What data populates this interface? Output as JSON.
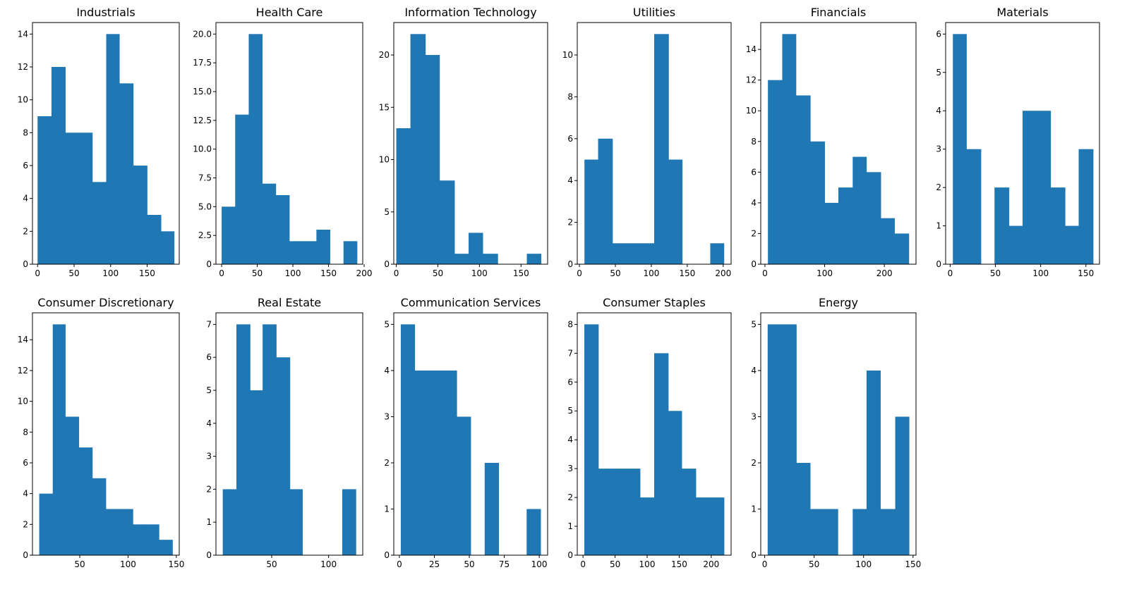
{
  "figure": {
    "bar_color": "#1f77b4",
    "background": "#ffffff"
  },
  "chart_data": [
    {
      "type": "bar",
      "title": "Industrials",
      "bins": [
        [
          0,
          19
        ],
        [
          19,
          38
        ],
        [
          38,
          56
        ],
        [
          56,
          75
        ],
        [
          75,
          94
        ],
        [
          94,
          112
        ],
        [
          112,
          131
        ],
        [
          131,
          150
        ],
        [
          150,
          169
        ],
        [
          169,
          187
        ]
      ],
      "values": [
        9,
        12,
        8,
        8,
        5,
        14,
        11,
        6,
        3,
        2
      ],
      "xlim": [
        -7,
        194
      ],
      "ylim": [
        0,
        14.7
      ],
      "xticks": [
        0,
        50,
        100,
        150
      ],
      "yticks": [
        0,
        2,
        4,
        6,
        8,
        10,
        12,
        14
      ]
    },
    {
      "type": "bar",
      "title": "Health Care",
      "bins": [
        [
          0,
          19
        ],
        [
          19,
          38
        ],
        [
          38,
          57
        ],
        [
          57,
          76
        ],
        [
          76,
          95
        ],
        [
          95,
          114
        ],
        [
          114,
          133
        ],
        [
          133,
          152
        ],
        [
          152,
          171
        ],
        [
          171,
          190
        ]
      ],
      "values": [
        5,
        13,
        20,
        7,
        6,
        2,
        2,
        3,
        0,
        2
      ],
      "xlim": [
        -8,
        198
      ],
      "ylim": [
        0,
        21
      ],
      "xticks": [
        0,
        50,
        100,
        150,
        200
      ],
      "yticks": [
        0,
        2.5,
        5.0,
        7.5,
        10.0,
        12.5,
        15.0,
        17.5,
        20.0
      ]
    },
    {
      "type": "bar",
      "title": "Information Technology",
      "bins": [
        [
          0,
          17
        ],
        [
          17,
          35
        ],
        [
          35,
          52
        ],
        [
          52,
          70
        ],
        [
          70,
          87
        ],
        [
          87,
          104
        ],
        [
          104,
          122
        ],
        [
          122,
          139
        ],
        [
          139,
          157
        ],
        [
          157,
          174
        ]
      ],
      "values": [
        13,
        22,
        20,
        8,
        1,
        3,
        1,
        0,
        0,
        1
      ],
      "xlim": [
        -3,
        182
      ],
      "ylim": [
        0,
        23.1
      ],
      "xticks": [
        0,
        50,
        100,
        150
      ],
      "yticks": [
        0,
        5,
        10,
        15,
        20
      ]
    },
    {
      "type": "bar",
      "title": "Utilities",
      "bins": [
        [
          7,
          26
        ],
        [
          26,
          46
        ],
        [
          46,
          65
        ],
        [
          65,
          85
        ],
        [
          85,
          104
        ],
        [
          104,
          124
        ],
        [
          124,
          143
        ],
        [
          143,
          163
        ],
        [
          163,
          182
        ],
        [
          182,
          201
        ]
      ],
      "values": [
        5,
        6,
        1,
        1,
        1,
        11,
        5,
        0,
        0,
        1
      ],
      "xlim": [
        -3,
        211
      ],
      "ylim": [
        0,
        11.55
      ],
      "xticks": [
        0,
        50,
        100,
        150,
        200
      ],
      "yticks": [
        0,
        2,
        4,
        6,
        8,
        10
      ]
    },
    {
      "type": "bar",
      "title": "Financials",
      "bins": [
        [
          5,
          29
        ],
        [
          29,
          52
        ],
        [
          52,
          76
        ],
        [
          76,
          100
        ],
        [
          100,
          123
        ],
        [
          123,
          147
        ],
        [
          147,
          170
        ],
        [
          170,
          194
        ],
        [
          194,
          217
        ],
        [
          217,
          241
        ]
      ],
      "values": [
        12,
        15,
        11,
        8,
        4,
        5,
        7,
        6,
        3,
        2
      ],
      "xlim": [
        -7,
        253
      ],
      "ylim": [
        0,
        15.75
      ],
      "xticks": [
        0,
        100,
        200
      ],
      "yticks": [
        0,
        2,
        4,
        6,
        8,
        10,
        12,
        14
      ]
    },
    {
      "type": "bar",
      "title": "Materials",
      "bins": [
        [
          3,
          18
        ],
        [
          18,
          34
        ],
        [
          34,
          49
        ],
        [
          49,
          65
        ],
        [
          65,
          80
        ],
        [
          80,
          96
        ],
        [
          96,
          111
        ],
        [
          111,
          127
        ],
        [
          127,
          142
        ],
        [
          142,
          158
        ]
      ],
      "values": [
        6,
        3,
        0,
        2,
        1,
        4,
        4,
        2,
        1,
        3
      ],
      "xlim": [
        -5,
        165
      ],
      "ylim": [
        0,
        6.3
      ],
      "xticks": [
        0,
        50,
        100,
        150
      ],
      "yticks": [
        0,
        1,
        2,
        3,
        4,
        5,
        6
      ]
    },
    {
      "type": "bar",
      "title": "Consumer Discretionary",
      "bins": [
        [
          8,
          22
        ],
        [
          22,
          35
        ],
        [
          35,
          49
        ],
        [
          49,
          63
        ],
        [
          63,
          77
        ],
        [
          77,
          91
        ],
        [
          91,
          105
        ],
        [
          105,
          118
        ],
        [
          118,
          132
        ],
        [
          132,
          146
        ]
      ],
      "values": [
        4,
        15,
        9,
        7,
        5,
        3,
        3,
        2,
        2,
        1
      ],
      "xlim": [
        1,
        153
      ],
      "ylim": [
        0,
        15.75
      ],
      "xticks": [
        50,
        100,
        150
      ],
      "yticks": [
        0,
        2,
        4,
        6,
        8,
        10,
        12,
        14
      ]
    },
    {
      "type": "bar",
      "title": "Real Estate",
      "bins": [
        [
          7,
          19
        ],
        [
          19,
          31
        ],
        [
          31,
          42
        ],
        [
          42,
          54
        ],
        [
          54,
          66
        ],
        [
          66,
          77
        ],
        [
          77,
          89
        ],
        [
          89,
          101
        ],
        [
          101,
          112
        ],
        [
          112,
          124
        ]
      ],
      "values": [
        2,
        7,
        5,
        7,
        6,
        2,
        0,
        0,
        0,
        2
      ],
      "xlim": [
        1,
        130
      ],
      "ylim": [
        0,
        7.35
      ],
      "xticks": [
        50,
        100
      ],
      "yticks": [
        0,
        1,
        2,
        3,
        4,
        5,
        6,
        7
      ]
    },
    {
      "type": "bar",
      "title": "Communication Services",
      "bins": [
        [
          1,
          11
        ],
        [
          11,
          21
        ],
        [
          21,
          31
        ],
        [
          31,
          41
        ],
        [
          41,
          51
        ],
        [
          51,
          61
        ],
        [
          61,
          71
        ],
        [
          71,
          81
        ],
        [
          81,
          91
        ],
        [
          91,
          101
        ]
      ],
      "values": [
        5,
        4,
        4,
        4,
        3,
        0,
        2,
        0,
        0,
        1
      ],
      "xlim": [
        -4,
        106
      ],
      "ylim": [
        0,
        5.25
      ],
      "xticks": [
        0,
        25,
        50,
        75,
        100
      ],
      "yticks": [
        0,
        1,
        2,
        3,
        4,
        5
      ]
    },
    {
      "type": "bar",
      "title": "Consumer Staples",
      "bins": [
        [
          2,
          24
        ],
        [
          24,
          46
        ],
        [
          46,
          67
        ],
        [
          67,
          89
        ],
        [
          89,
          111
        ],
        [
          111,
          133
        ],
        [
          133,
          154
        ],
        [
          154,
          176
        ],
        [
          176,
          198
        ],
        [
          198,
          220
        ]
      ],
      "values": [
        8,
        3,
        3,
        3,
        2,
        7,
        5,
        3,
        2,
        2
      ],
      "xlim": [
        -9,
        231
      ],
      "ylim": [
        0,
        8.4
      ],
      "xticks": [
        0,
        50,
        100,
        150,
        200
      ],
      "yticks": [
        0,
        1,
        2,
        3,
        4,
        5,
        6,
        7,
        8
      ]
    },
    {
      "type": "bar",
      "title": "Energy",
      "bins": [
        [
          3,
          17
        ],
        [
          17,
          32
        ],
        [
          32,
          46
        ],
        [
          46,
          60
        ],
        [
          60,
          74
        ],
        [
          74,
          89
        ],
        [
          89,
          103
        ],
        [
          103,
          117
        ],
        [
          117,
          132
        ],
        [
          132,
          146
        ]
      ],
      "values": [
        5,
        5,
        2,
        1,
        1,
        0,
        1,
        4,
        1,
        3
      ],
      "xlim": [
        -4,
        153
      ],
      "ylim": [
        0,
        5.25
      ],
      "xticks": [
        0,
        50,
        100,
        150
      ],
      "yticks": [
        0,
        1,
        2,
        3,
        4,
        5
      ]
    }
  ]
}
